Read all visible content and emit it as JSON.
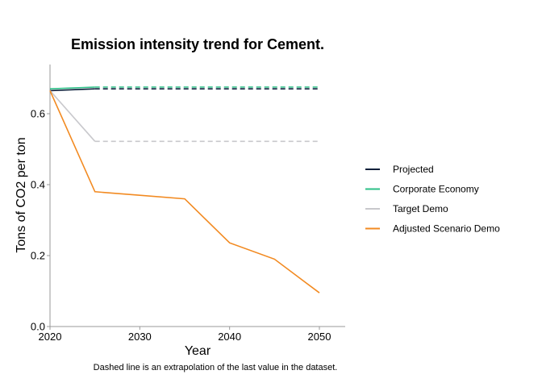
{
  "chart_data": {
    "type": "line",
    "title": "Emission intensity trend for Cement.",
    "xlabel": "Year",
    "ylabel": "Tons of CO2 per ton",
    "xlim": [
      2020,
      2053
    ],
    "ylim": [
      0,
      0.74
    ],
    "x_ticks": [
      2020,
      2030,
      2040,
      2050
    ],
    "y_ticks": [
      0.0,
      0.2,
      0.4,
      0.6
    ],
    "y_tick_labels": [
      "0.0",
      "0.2",
      "0.4",
      "0.6"
    ],
    "grid": false,
    "legend_position": "right",
    "caption": "Dashed line is an extrapolation of the last value in the dataset.",
    "series": [
      {
        "name": "Projected",
        "color": "#0b1f3a",
        "points": [
          [
            2020,
            0.665
          ],
          [
            2025,
            0.67
          ]
        ],
        "extrapolation": [
          [
            2025,
            0.67
          ],
          [
            2050,
            0.67
          ]
        ]
      },
      {
        "name": "Corporate Economy",
        "color": "#2bbf86",
        "points": [
          [
            2020,
            0.67
          ],
          [
            2025,
            0.675
          ]
        ],
        "extrapolation": [
          [
            2025,
            0.675
          ],
          [
            2050,
            0.675
          ]
        ]
      },
      {
        "name": "Target Demo",
        "color": "#c8c8cc",
        "points": [
          [
            2020,
            0.665
          ],
          [
            2025,
            0.522
          ]
        ],
        "extrapolation": [
          [
            2025,
            0.522
          ],
          [
            2050,
            0.522
          ]
        ]
      },
      {
        "name": "Adjusted Scenario Demo",
        "color": "#f28a21",
        "points": [
          [
            2020,
            0.665
          ],
          [
            2025,
            0.38
          ],
          [
            2030,
            0.37
          ],
          [
            2035,
            0.36
          ],
          [
            2040,
            0.236
          ],
          [
            2045,
            0.19
          ],
          [
            2050,
            0.095
          ]
        ],
        "extrapolation": []
      }
    ]
  }
}
